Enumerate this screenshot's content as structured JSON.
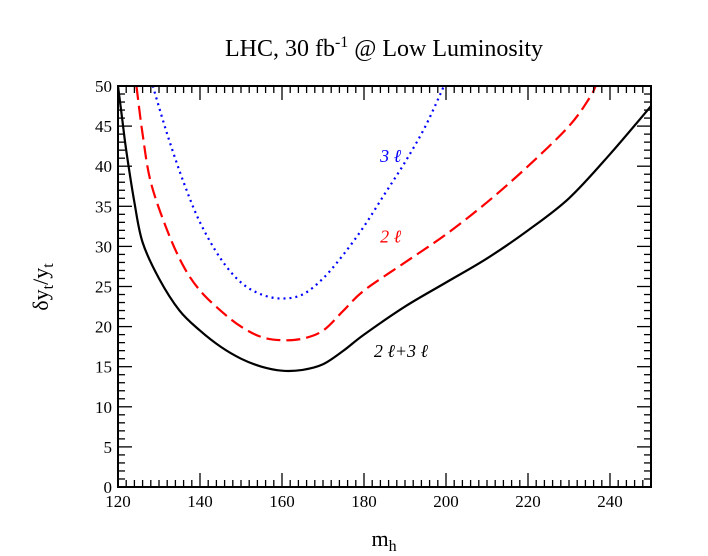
{
  "chart_data": {
    "type": "line",
    "title": {
      "prefix": "LHC, 30 fb",
      "superscript": "-1",
      "suffix": " @ Low Luminosity"
    },
    "xlabel": {
      "base": "m",
      "sub": "h"
    },
    "ylabel": {
      "delta": "δ",
      "y1": "y",
      "sub1": "t",
      "slash": "/",
      "y2": "y",
      "sub2": "t"
    },
    "xlim": [
      120,
      250
    ],
    "ylim": [
      0,
      50
    ],
    "xticks": [
      120,
      140,
      160,
      180,
      200,
      220,
      240
    ],
    "yticks": [
      0,
      5,
      10,
      15,
      20,
      25,
      30,
      35,
      40,
      45,
      50
    ],
    "grid": false,
    "series": [
      {
        "label": "3 ℓ",
        "color": "#0000ff",
        "style": "dotted",
        "points": [
          [
            128.5,
            50
          ],
          [
            132,
            44
          ],
          [
            136,
            38
          ],
          [
            140,
            33
          ],
          [
            145,
            28.5
          ],
          [
            150,
            25.5
          ],
          [
            155,
            24
          ],
          [
            160,
            23.5
          ],
          [
            165,
            24
          ],
          [
            170,
            26
          ],
          [
            175,
            29
          ],
          [
            180,
            32.5
          ],
          [
            185,
            36.5
          ],
          [
            190,
            40.5
          ],
          [
            195,
            45
          ],
          [
            199.5,
            50
          ]
        ]
      },
      {
        "label": "2 ℓ",
        "color": "#ff0000",
        "style": "dashed",
        "points": [
          [
            124.5,
            50
          ],
          [
            126,
            44
          ],
          [
            128,
            38
          ],
          [
            132,
            32
          ],
          [
            136,
            27.5
          ],
          [
            140,
            24.5
          ],
          [
            145,
            22
          ],
          [
            150,
            20
          ],
          [
            155,
            18.7
          ],
          [
            160,
            18.3
          ],
          [
            165,
            18.5
          ],
          [
            170,
            19.5
          ],
          [
            175,
            22
          ],
          [
            180,
            24.5
          ],
          [
            190,
            28
          ],
          [
            200,
            31.5
          ],
          [
            210,
            35.5
          ],
          [
            220,
            40
          ],
          [
            230,
            45
          ],
          [
            235,
            48.5
          ],
          [
            236.5,
            50
          ]
        ]
      },
      {
        "label": "2 ℓ+3 ℓ",
        "color": "#000000",
        "style": "solid",
        "points": [
          [
            120,
            50
          ],
          [
            121,
            46
          ],
          [
            122,
            42
          ],
          [
            124,
            35.5
          ],
          [
            126,
            30.5
          ],
          [
            130,
            26
          ],
          [
            135,
            22
          ],
          [
            140,
            19.5
          ],
          [
            145,
            17.5
          ],
          [
            150,
            16
          ],
          [
            155,
            15
          ],
          [
            160,
            14.5
          ],
          [
            165,
            14.6
          ],
          [
            170,
            15.3
          ],
          [
            175,
            17
          ],
          [
            180,
            19
          ],
          [
            190,
            22.5
          ],
          [
            200,
            25.5
          ],
          [
            210,
            28.5
          ],
          [
            220,
            32
          ],
          [
            230,
            36
          ],
          [
            240,
            41.5
          ],
          [
            250,
            47.5
          ]
        ]
      }
    ],
    "annotations": [
      {
        "text": "3 ℓ",
        "color": "#0000ff",
        "x": 186.5,
        "y": 40.5
      },
      {
        "text": "2 ℓ",
        "color": "#ff0000",
        "x": 186.5,
        "y": 30.5
      },
      {
        "text": "2 ℓ+3 ℓ",
        "color": "#000000",
        "x": 189,
        "y": 16.2
      }
    ]
  }
}
